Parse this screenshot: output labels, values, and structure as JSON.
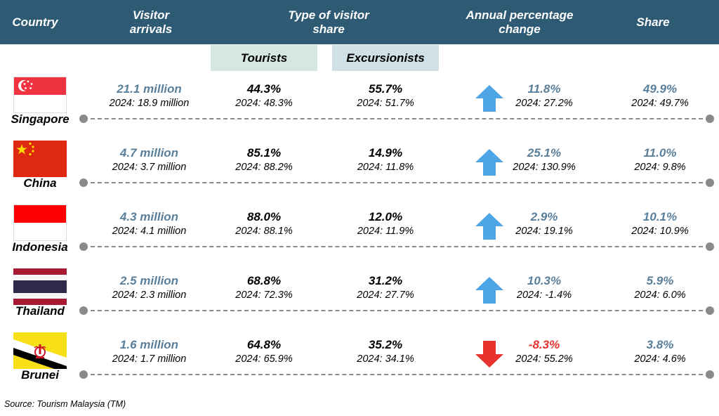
{
  "header": {
    "country": "Country",
    "visitor_arrivals": "Visitor arrivals",
    "type_share": "Type of visitor share",
    "annual_change": "Annual percentage change",
    "share": "Share"
  },
  "subheader": {
    "tourists": "Tourists",
    "excursionists": "Excursionists",
    "tourists_bg": "#d5e7df",
    "excursionists_bg": "#cfe0e6"
  },
  "colors": {
    "header_bg": "#2e5a73",
    "value_blue": "#5a7f9b",
    "arrow_up": "#4ea5e6",
    "arrow_down": "#e8322d"
  },
  "rows": [
    {
      "country": "Singapore",
      "flag": "singapore-flag",
      "arrivals": "21.1 million",
      "arrivals_prev": "2024: 18.9 million",
      "tourists": "44.3%",
      "tourists_prev": "2024: 48.3%",
      "excursionists": "55.7%",
      "excursionists_prev": "2024: 51.7%",
      "change": "11.8%",
      "change_prev": "2024: 27.2%",
      "direction": "up",
      "share": "49.9%",
      "share_prev": "2024: 49.7%"
    },
    {
      "country": "China",
      "flag": "china-flag",
      "arrivals": "4.7 million",
      "arrivals_prev": "2024: 3.7 million",
      "tourists": "85.1%",
      "tourists_prev": "2024: 88.2%",
      "excursionists": "14.9%",
      "excursionists_prev": "2024: 11.8%",
      "change": "25.1%",
      "change_prev": "2024: 130.9%",
      "direction": "up",
      "share": "11.0%",
      "share_prev": "2024: 9.8%"
    },
    {
      "country": "Indonesia",
      "flag": "indonesia-flag",
      "arrivals": "4.3 million",
      "arrivals_prev": "2024: 4.1 million",
      "tourists": "88.0%",
      "tourists_prev": "2024: 88.1%",
      "excursionists": "12.0%",
      "excursionists_prev": "2024: 11.9%",
      "change": "2.9%",
      "change_prev": "2024: 19.1%",
      "direction": "up",
      "share": "10.1%",
      "share_prev": "2024: 10.9%"
    },
    {
      "country": "Thailand",
      "flag": "thailand-flag",
      "arrivals": "2.5 million",
      "arrivals_prev": "2024: 2.3 million",
      "tourists": "68.8%",
      "tourists_prev": "2024: 72.3%",
      "excursionists": "31.2%",
      "excursionists_prev": "2024: 27.7%",
      "change": "10.3%",
      "change_prev": "2024: -1.4%",
      "direction": "up",
      "share": "5.9%",
      "share_prev": "2024: 6.0%"
    },
    {
      "country": "Brunei",
      "flag": "brunei-flag",
      "arrivals": "1.6 million",
      "arrivals_prev": "2024: 1.7 million",
      "tourists": "64.8%",
      "tourists_prev": "2024: 65.9%",
      "excursionists": "35.2%",
      "excursionists_prev": "2024: 34.1%",
      "change": "-8.3%",
      "change_prev": "2024: 55.2%",
      "direction": "down",
      "share": "3.8%",
      "share_prev": "2024: 4.6%"
    }
  ],
  "source": "Source: Tourism Malaysia (TM)"
}
